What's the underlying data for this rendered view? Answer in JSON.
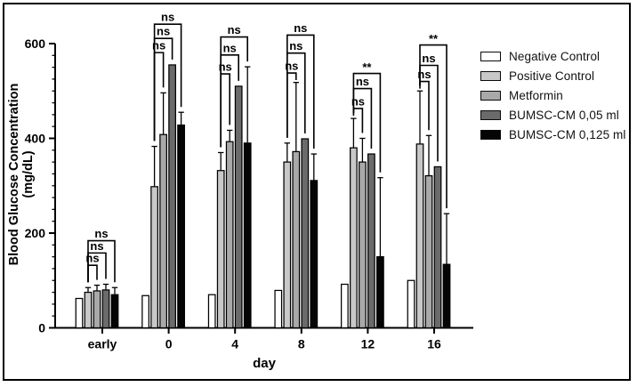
{
  "figure": {
    "y_axis_title_line1": "Blood Glucose Concentration",
    "y_axis_title_line2": "(mg/dL)",
    "x_axis_title": "day"
  },
  "chart_data": {
    "type": "bar",
    "title": "",
    "xlabel": "day",
    "ylabel": "Blood Glucose Concentration (mg/dL)",
    "categories": [
      "early",
      "0",
      "4",
      "8",
      "12",
      "16"
    ],
    "ylim": [
      0,
      600
    ],
    "y_major_ticks": [
      0,
      200,
      400,
      600
    ],
    "y_minor_tick_step": 25,
    "grid": false,
    "legend_position": "right",
    "series": [
      {
        "name": "Negative Control",
        "color": "#ffffff",
        "values": [
          62,
          68,
          70,
          79,
          92,
          100
        ],
        "errors_up": [
          0,
          0,
          0,
          0,
          0,
          0
        ]
      },
      {
        "name": "Positive Control",
        "color": "#c8c8c8",
        "values": [
          75,
          298,
          332,
          350,
          380,
          388
        ],
        "errors_up": [
          10,
          85,
          38,
          40,
          62,
          112
        ]
      },
      {
        "name": "Metformin",
        "color": "#a9a9a9",
        "values": [
          78,
          408,
          393,
          372,
          350,
          321
        ],
        "errors_up": [
          12,
          88,
          24,
          146,
          50,
          85
        ]
      },
      {
        "name": "BUMSC-CM 0,05 ml",
        "color": "#6b6b6b",
        "values": [
          80,
          555,
          510,
          399,
          367,
          340
        ],
        "errors_up": [
          12,
          0,
          0,
          0,
          0,
          0
        ]
      },
      {
        "name": "BUMSC-CM 0,125 ml",
        "color": "#050505",
        "values": [
          70,
          428,
          390,
          311,
          150,
          134
        ],
        "errors_up": [
          15,
          27,
          161,
          56,
          167,
          107
        ]
      }
    ],
    "significance_brackets": [
      {
        "group": 0,
        "from_series": 1,
        "to_series": 2,
        "y": 132,
        "label": "ns"
      },
      {
        "group": 0,
        "from_series": 1,
        "to_series": 3,
        "y": 158,
        "label": "ns"
      },
      {
        "group": 0,
        "from_series": 1,
        "to_series": 4,
        "y": 184,
        "label": "ns"
      },
      {
        "group": 1,
        "from_series": 1,
        "to_series": 2,
        "y": 581,
        "label": "ns"
      },
      {
        "group": 1,
        "from_series": 1,
        "to_series": 3,
        "y": 611,
        "label": "ns"
      },
      {
        "group": 1,
        "from_series": 1,
        "to_series": 4,
        "y": 641,
        "label": "ns"
      },
      {
        "group": 2,
        "from_series": 1,
        "to_series": 2,
        "y": 536,
        "label": "ns"
      },
      {
        "group": 2,
        "from_series": 1,
        "to_series": 3,
        "y": 576,
        "label": "ns"
      },
      {
        "group": 2,
        "from_series": 1,
        "to_series": 4,
        "y": 614,
        "label": "ns"
      },
      {
        "group": 3,
        "from_series": 1,
        "to_series": 2,
        "y": 538,
        "label": "ns"
      },
      {
        "group": 3,
        "from_series": 1,
        "to_series": 3,
        "y": 580,
        "label": "ns"
      },
      {
        "group": 3,
        "from_series": 1,
        "to_series": 4,
        "y": 618,
        "label": "ns"
      },
      {
        "group": 4,
        "from_series": 1,
        "to_series": 2,
        "y": 463,
        "label": "ns"
      },
      {
        "group": 4,
        "from_series": 1,
        "to_series": 3,
        "y": 505,
        "label": "ns"
      },
      {
        "group": 4,
        "from_series": 1,
        "to_series": 4,
        "y": 537,
        "label": "**"
      },
      {
        "group": 5,
        "from_series": 1,
        "to_series": 2,
        "y": 520,
        "label": "ns"
      },
      {
        "group": 5,
        "from_series": 1,
        "to_series": 3,
        "y": 554,
        "label": "ns"
      },
      {
        "group": 5,
        "from_series": 1,
        "to_series": 4,
        "y": 597,
        "label": "**"
      }
    ]
  }
}
